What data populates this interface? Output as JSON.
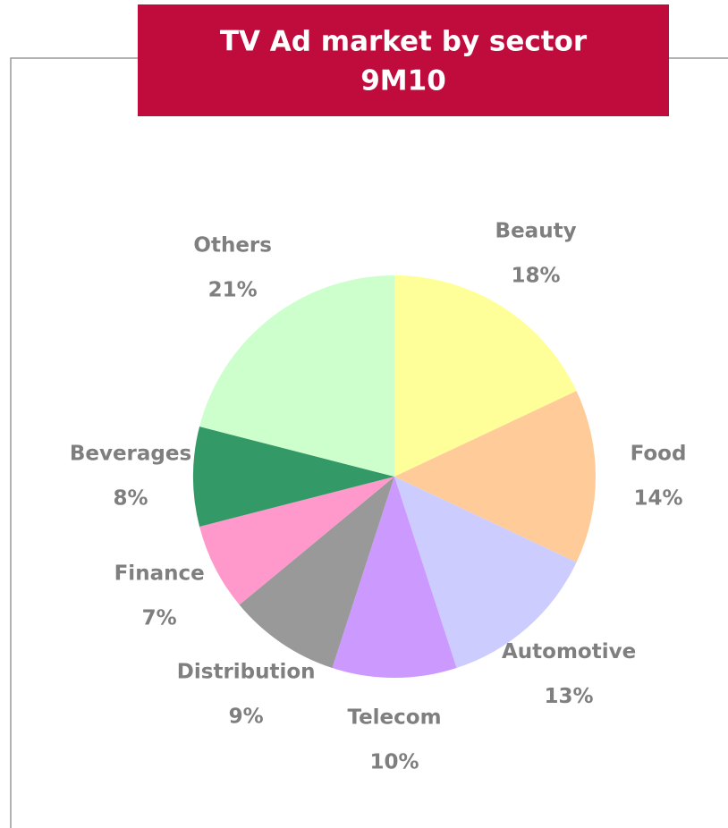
{
  "chart_data": {
    "type": "pie",
    "title": "TV Ad market by sector",
    "subtitle": "9M10",
    "categories": [
      "Beauty",
      "Food",
      "Automotive",
      "Telecom",
      "Distribution",
      "Finance",
      "Beverages",
      "Others"
    ],
    "values": [
      18,
      14,
      13,
      10,
      9,
      7,
      8,
      21
    ],
    "value_labels": [
      "18%",
      "14%",
      "13%",
      "10%",
      "9%",
      "7%",
      "8%",
      "21%"
    ],
    "colors": [
      "#ffff99",
      "#ffcc99",
      "#ccccff",
      "#cc99ff",
      "#999999",
      "#ff99cc",
      "#339966",
      "#ccffcc"
    ]
  }
}
